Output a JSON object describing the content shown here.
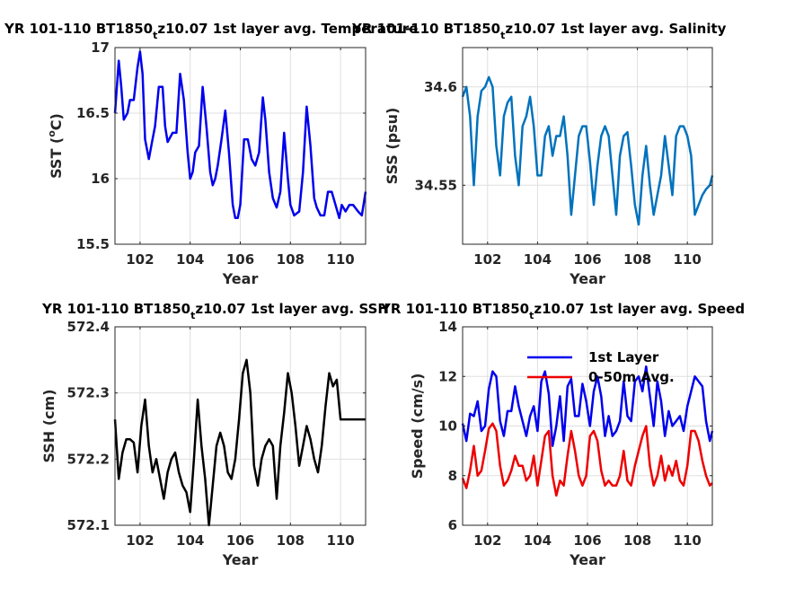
{
  "chart_data": [
    {
      "type": "line",
      "title_main": "YR 101-110 BT1850",
      "title_sub": "t",
      "title_end": "z10.07 1st layer avg. Temperature",
      "xlabel": "Year",
      "ylabel_pre": "SST (",
      "ylabel_sup": "o",
      "ylabel_post": "C)",
      "xlim": [
        101,
        111
      ],
      "ylim": [
        15.5,
        17
      ],
      "xticks": [
        "102",
        "104",
        "106",
        "108",
        "110"
      ],
      "xtick_values": [
        102,
        104,
        106,
        108,
        110
      ],
      "yticks": [
        "15.5",
        "16",
        "16.5",
        "17"
      ],
      "ytick_values": [
        15.5,
        16,
        16.5,
        17
      ],
      "grid": true,
      "series": [
        {
          "color": "#0000ee",
          "x": [
            101.0,
            101.15,
            101.25,
            101.35,
            101.5,
            101.6,
            101.75,
            101.9,
            102.0,
            102.1,
            102.2,
            102.35,
            102.5,
            102.6,
            102.75,
            102.9,
            103.0,
            103.1,
            103.3,
            103.45,
            103.6,
            103.75,
            103.9,
            104.0,
            104.1,
            104.2,
            104.35,
            104.5,
            104.65,
            104.8,
            104.9,
            105.0,
            105.1,
            105.25,
            105.4,
            105.55,
            105.7,
            105.8,
            105.9,
            106.0,
            106.15,
            106.3,
            106.45,
            106.6,
            106.75,
            106.9,
            107.0,
            107.15,
            107.3,
            107.45,
            107.6,
            107.75,
            107.9,
            108.0,
            108.15,
            108.35,
            108.5,
            108.65,
            108.8,
            108.95,
            109.05,
            109.2,
            109.35,
            109.5,
            109.65,
            109.8,
            109.95,
            110.05,
            110.2,
            110.35,
            110.5,
            110.7,
            110.85,
            111.0
          ],
          "y": [
            16.5,
            16.9,
            16.7,
            16.45,
            16.5,
            16.6,
            16.6,
            16.85,
            16.97,
            16.8,
            16.3,
            16.15,
            16.3,
            16.4,
            16.7,
            16.7,
            16.4,
            16.28,
            16.35,
            16.35,
            16.8,
            16.6,
            16.2,
            16.0,
            16.05,
            16.2,
            16.25,
            16.7,
            16.4,
            16.05,
            15.95,
            16.0,
            16.1,
            16.3,
            16.52,
            16.2,
            15.8,
            15.7,
            15.7,
            15.8,
            16.3,
            16.3,
            16.15,
            16.1,
            16.2,
            16.62,
            16.45,
            16.05,
            15.85,
            15.78,
            15.9,
            16.35,
            16.0,
            15.8,
            15.72,
            15.75,
            16.05,
            16.55,
            16.25,
            15.85,
            15.78,
            15.72,
            15.72,
            15.9,
            15.9,
            15.8,
            15.7,
            15.8,
            15.75,
            15.8,
            15.8,
            15.75,
            15.72,
            15.9
          ]
        }
      ]
    },
    {
      "type": "line",
      "title_main": "YR 101-110 BT1850",
      "title_sub": "t",
      "title_end": "z10.07 1st layer avg. Salinity",
      "xlabel": "Year",
      "ylabel": "SSS (psu)",
      "xlim": [
        101,
        111
      ],
      "ylim": [
        34.52,
        34.62
      ],
      "xticks": [
        "102",
        "104",
        "106",
        "108",
        "110"
      ],
      "xtick_values": [
        102,
        104,
        106,
        108,
        110
      ],
      "yticks": [
        "34.55",
        "34.6"
      ],
      "ytick_values": [
        34.55,
        34.6
      ],
      "grid": true,
      "series": [
        {
          "color": "#0072bd",
          "x": [
            101.0,
            101.15,
            101.3,
            101.45,
            101.6,
            101.75,
            101.9,
            102.05,
            102.2,
            102.35,
            102.5,
            102.65,
            102.8,
            102.95,
            103.1,
            103.25,
            103.4,
            103.55,
            103.7,
            103.85,
            104.0,
            104.15,
            104.3,
            104.45,
            104.6,
            104.75,
            104.9,
            105.05,
            105.2,
            105.35,
            105.5,
            105.65,
            105.8,
            105.95,
            106.1,
            106.25,
            106.4,
            106.55,
            106.7,
            106.85,
            107.0,
            107.15,
            107.3,
            107.45,
            107.6,
            107.75,
            107.9,
            108.05,
            108.2,
            108.35,
            108.5,
            108.65,
            108.8,
            108.95,
            109.1,
            109.25,
            109.4,
            109.55,
            109.7,
            109.85,
            110.0,
            110.15,
            110.3,
            110.45,
            110.6,
            110.75,
            110.9,
            111.0
          ],
          "y": [
            34.595,
            34.6,
            34.585,
            34.55,
            34.585,
            34.598,
            34.6,
            34.605,
            34.6,
            34.57,
            34.555,
            34.585,
            34.592,
            34.595,
            34.565,
            34.55,
            34.58,
            34.585,
            34.595,
            34.58,
            34.555,
            34.555,
            34.575,
            34.58,
            34.565,
            34.575,
            34.575,
            34.585,
            34.565,
            34.535,
            34.555,
            34.575,
            34.58,
            34.58,
            34.562,
            34.54,
            34.56,
            34.575,
            34.58,
            34.575,
            34.555,
            34.535,
            34.565,
            34.575,
            34.577,
            34.56,
            34.54,
            34.53,
            34.555,
            34.57,
            34.55,
            34.535,
            34.545,
            34.555,
            34.575,
            34.56,
            34.545,
            34.575,
            34.58,
            34.58,
            34.575,
            34.565,
            34.535,
            34.54,
            34.545,
            34.548,
            34.55,
            34.555
          ]
        }
      ]
    },
    {
      "type": "line",
      "title_main": "YR 101-110 BT1850",
      "title_sub": "t",
      "title_end": "z10.07 1st layer avg. SSH",
      "xlabel": "Year",
      "ylabel": "SSH (cm)",
      "xlim": [
        101,
        111
      ],
      "ylim": [
        572.1,
        572.4
      ],
      "xticks": [
        "102",
        "104",
        "106",
        "108",
        "110"
      ],
      "xtick_values": [
        102,
        104,
        106,
        108,
        110
      ],
      "yticks": [
        "572.1",
        "572.2",
        "572.3",
        "572.4"
      ],
      "ytick_values": [
        572.1,
        572.2,
        572.3,
        572.4
      ],
      "grid": true,
      "series": [
        {
          "color": "#000000",
          "x": [
            101.0,
            101.15,
            101.3,
            101.45,
            101.6,
            101.75,
            101.9,
            102.05,
            102.2,
            102.35,
            102.5,
            102.65,
            102.8,
            102.95,
            103.1,
            103.25,
            103.4,
            103.55,
            103.7,
            103.85,
            104.0,
            104.15,
            104.3,
            104.45,
            104.6,
            104.75,
            104.9,
            105.05,
            105.2,
            105.35,
            105.5,
            105.65,
            105.8,
            105.95,
            106.1,
            106.25,
            106.4,
            106.55,
            106.7,
            106.85,
            107.0,
            107.15,
            107.3,
            107.45,
            107.6,
            107.75,
            107.9,
            108.05,
            108.2,
            108.35,
            108.5,
            108.65,
            108.8,
            108.95,
            109.1,
            109.25,
            109.4,
            109.55,
            109.7,
            109.85,
            110.0,
            110.15,
            110.3,
            110.45,
            110.6,
            110.75,
            110.9,
            111.0
          ],
          "y": [
            572.26,
            572.17,
            572.21,
            572.23,
            572.23,
            572.225,
            572.18,
            572.25,
            572.29,
            572.22,
            572.18,
            572.2,
            572.17,
            572.14,
            572.18,
            572.2,
            572.21,
            572.18,
            572.16,
            572.15,
            572.12,
            572.2,
            572.29,
            572.22,
            572.17,
            572.1,
            572.16,
            572.22,
            572.24,
            572.22,
            572.18,
            572.17,
            572.2,
            572.26,
            572.33,
            572.35,
            572.3,
            572.19,
            572.16,
            572.2,
            572.22,
            572.23,
            572.22,
            572.14,
            572.22,
            572.27,
            572.33,
            572.3,
            572.25,
            572.19,
            572.22,
            572.25,
            572.23,
            572.2,
            572.18,
            572.22,
            572.28,
            572.33,
            572.31,
            572.32,
            572.26,
            572.26,
            572.26,
            572.26,
            572.26,
            572.26,
            572.26,
            572.26
          ]
        }
      ]
    },
    {
      "type": "line",
      "title_main": "YR 101-110 BT1850",
      "title_sub": "t",
      "title_end": "z10.07 1st layer avg. Speed",
      "xlabel": "Year",
      "ylabel": "Speed (cm/s)",
      "xlim": [
        101,
        111
      ],
      "ylim": [
        6,
        14
      ],
      "xticks": [
        "102",
        "104",
        "106",
        "108",
        "110"
      ],
      "xtick_values": [
        102,
        104,
        106,
        108,
        110
      ],
      "yticks": [
        "6",
        "8",
        "10",
        "12",
        "14"
      ],
      "ytick_values": [
        6,
        8,
        10,
        12,
        14
      ],
      "grid": true,
      "legend": "top-center",
      "series": [
        {
          "name": "1st Layer",
          "color": "#0000ee",
          "x": [
            101.0,
            101.15,
            101.3,
            101.45,
            101.6,
            101.75,
            101.9,
            102.05,
            102.2,
            102.35,
            102.5,
            102.65,
            102.8,
            102.95,
            103.1,
            103.25,
            103.4,
            103.55,
            103.7,
            103.85,
            104.0,
            104.15,
            104.3,
            104.45,
            104.6,
            104.75,
            104.9,
            105.05,
            105.2,
            105.35,
            105.5,
            105.65,
            105.8,
            105.95,
            106.1,
            106.25,
            106.4,
            106.55,
            106.7,
            106.85,
            107.0,
            107.15,
            107.3,
            107.45,
            107.6,
            107.75,
            107.9,
            108.05,
            108.2,
            108.35,
            108.5,
            108.65,
            108.8,
            108.95,
            109.1,
            109.25,
            109.4,
            109.55,
            109.7,
            109.85,
            110.0,
            110.15,
            110.3,
            110.45,
            110.6,
            110.75,
            110.9,
            111.0
          ],
          "y": [
            10.1,
            9.4,
            10.5,
            10.4,
            11.0,
            9.8,
            10.0,
            11.5,
            12.2,
            12.0,
            10.2,
            9.6,
            10.6,
            10.6,
            11.6,
            10.8,
            10.2,
            9.6,
            10.4,
            10.8,
            9.8,
            11.8,
            12.2,
            11.3,
            9.2,
            10.0,
            11.2,
            9.4,
            11.6,
            11.9,
            10.4,
            10.4,
            11.7,
            11.0,
            10.0,
            11.4,
            12.0,
            11.2,
            9.6,
            10.4,
            9.6,
            9.8,
            10.2,
            11.8,
            10.4,
            10.2,
            11.8,
            12.0,
            11.4,
            12.4,
            11.2,
            10.0,
            11.8,
            11.0,
            9.6,
            10.6,
            10.0,
            10.2,
            10.4,
            9.8,
            10.8,
            11.4,
            12.0,
            11.8,
            11.6,
            10.2,
            9.4,
            9.8
          ]
        },
        {
          "name": "0-50m Avg.",
          "color": "#ee0000",
          "x": [
            101.0,
            101.15,
            101.3,
            101.45,
            101.6,
            101.75,
            101.9,
            102.05,
            102.2,
            102.35,
            102.5,
            102.65,
            102.8,
            102.95,
            103.1,
            103.25,
            103.4,
            103.55,
            103.7,
            103.85,
            104.0,
            104.15,
            104.3,
            104.45,
            104.6,
            104.75,
            104.9,
            105.05,
            105.2,
            105.35,
            105.5,
            105.65,
            105.8,
            105.95,
            106.1,
            106.25,
            106.4,
            106.55,
            106.7,
            106.85,
            107.0,
            107.15,
            107.3,
            107.45,
            107.6,
            107.75,
            107.9,
            108.05,
            108.2,
            108.35,
            108.5,
            108.65,
            108.8,
            108.95,
            109.1,
            109.25,
            109.4,
            109.55,
            109.7,
            109.85,
            110.0,
            110.15,
            110.3,
            110.45,
            110.6,
            110.75,
            110.9,
            111.0
          ],
          "y": [
            7.9,
            7.5,
            8.2,
            9.2,
            8.0,
            8.2,
            9.0,
            9.9,
            10.1,
            9.8,
            8.4,
            7.6,
            7.8,
            8.2,
            8.8,
            8.4,
            8.4,
            7.8,
            8.0,
            8.8,
            7.6,
            8.6,
            9.6,
            9.8,
            8.0,
            7.2,
            7.8,
            7.6,
            8.8,
            9.8,
            9.0,
            8.0,
            7.6,
            8.0,
            9.6,
            9.8,
            9.4,
            8.2,
            7.6,
            7.8,
            7.6,
            7.6,
            8.0,
            9.0,
            7.8,
            7.6,
            8.4,
            9.0,
            9.6,
            10.0,
            8.4,
            7.6,
            8.0,
            8.8,
            7.8,
            8.4,
            8.0,
            8.6,
            7.8,
            7.6,
            8.4,
            9.8,
            9.8,
            9.4,
            8.6,
            8.0,
            7.6,
            7.7
          ]
        }
      ]
    }
  ]
}
